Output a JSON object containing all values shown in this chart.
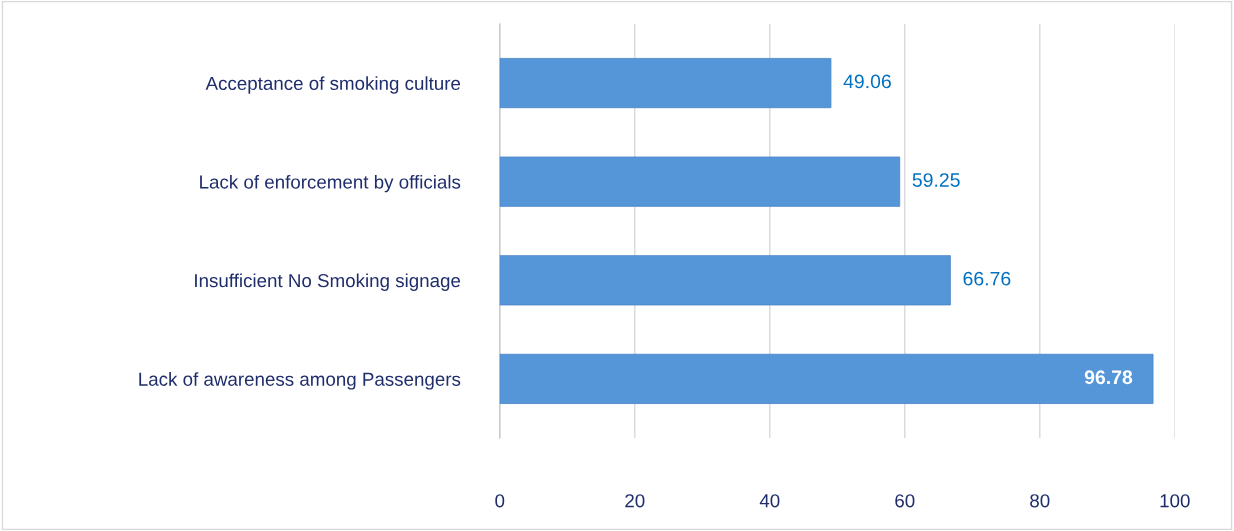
{
  "chart_data": {
    "type": "bar",
    "orientation": "horizontal",
    "categories": [
      "Acceptance of smoking culture",
      "Lack of enforcement by officials",
      "Insufficient No Smoking signage",
      "Lack of awareness among Passengers"
    ],
    "values": [
      49.06,
      59.25,
      66.76,
      96.78
    ],
    "color": "#5496d8",
    "xlim": [
      0,
      100
    ],
    "xticks": [
      0,
      20,
      40,
      60,
      80,
      100
    ],
    "grid": "x",
    "data_labels": true
  }
}
